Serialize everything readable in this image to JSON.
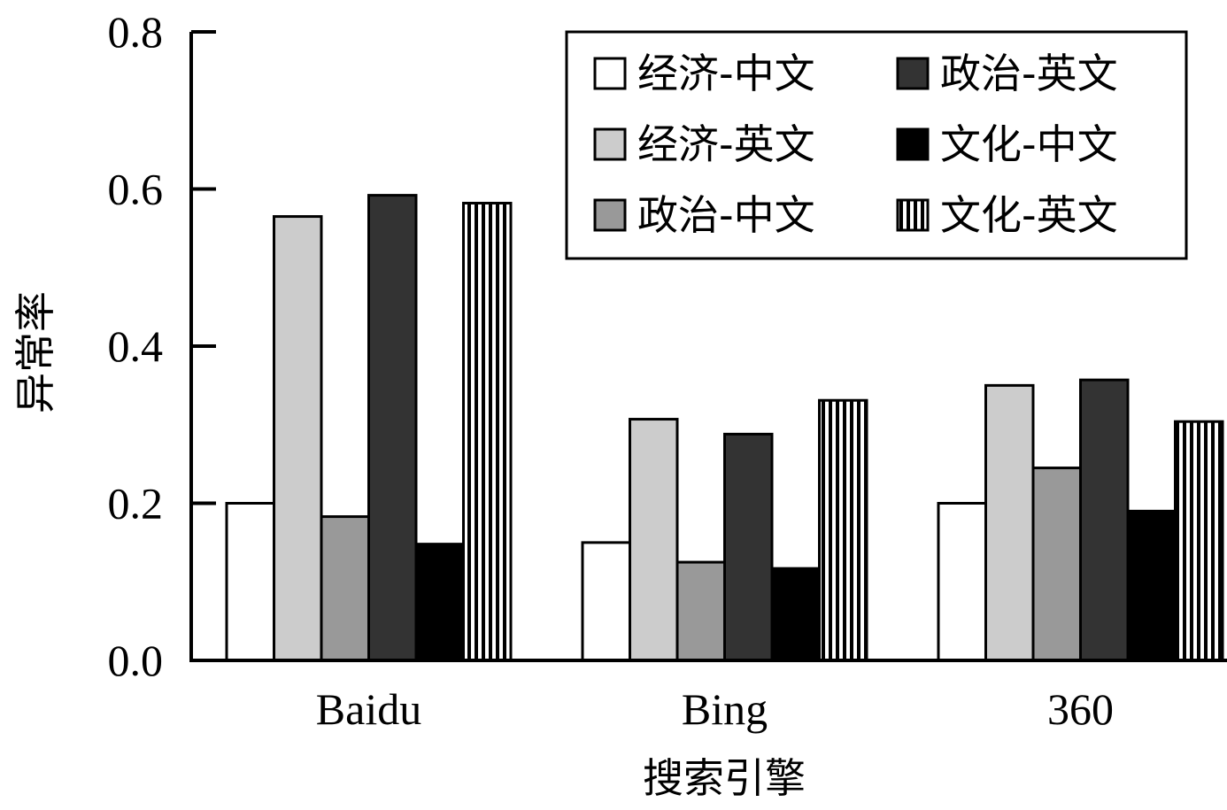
{
  "chart_data": {
    "type": "bar",
    "xlabel": "搜索引擎",
    "ylabel": "异常率",
    "ylim": [
      0,
      0.8
    ],
    "yticks": [
      "0.0",
      "0.2",
      "0.4",
      "0.6",
      "0.8"
    ],
    "categories": [
      "Baidu",
      "Bing",
      "360"
    ],
    "series": [
      {
        "name": "经济-中文",
        "fill": "#ffffff",
        "pattern": "none",
        "values": [
          0.2,
          0.15,
          0.2
        ]
      },
      {
        "name": "经济-英文",
        "fill": "#cccccc",
        "pattern": "none",
        "values": [
          0.565,
          0.307,
          0.35
        ]
      },
      {
        "name": "政治-中文",
        "fill": "#999999",
        "pattern": "none",
        "values": [
          0.183,
          0.125,
          0.245
        ]
      },
      {
        "name": "政治-英文",
        "fill": "#333333",
        "pattern": "none",
        "values": [
          0.592,
          0.288,
          0.357
        ]
      },
      {
        "name": "文化-中文",
        "fill": "#000000",
        "pattern": "none",
        "values": [
          0.148,
          0.117,
          0.19
        ]
      },
      {
        "name": "文化-英文",
        "fill": "#ffffff",
        "pattern": "vertical-stripes",
        "values": [
          0.582,
          0.331,
          0.304
        ]
      }
    ],
    "grid": false,
    "legend_position": "top-right",
    "legend_columns": 2
  }
}
